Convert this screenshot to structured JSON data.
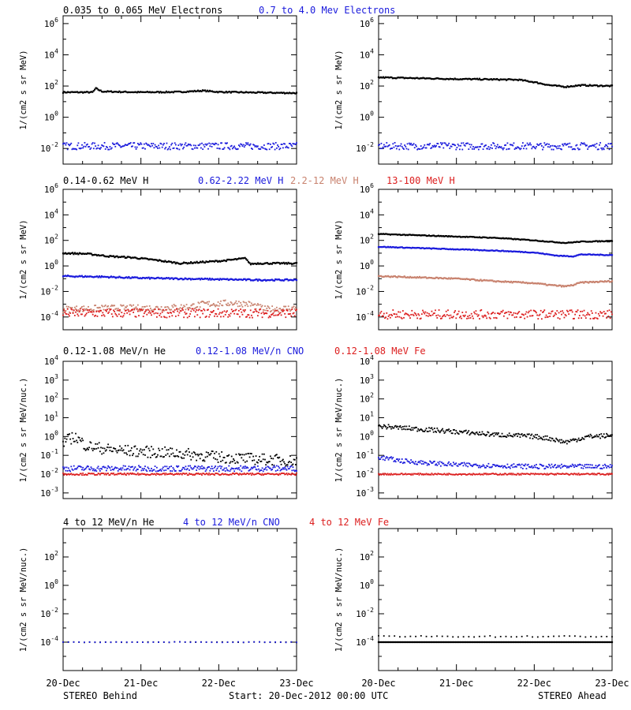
{
  "chart_data": [
    {
      "type": "scatter",
      "name": "electrons-behind",
      "title_parts": [
        {
          "text": "0.035 to 0.065 MeV Electrons",
          "color": "#000000"
        },
        {
          "text": "0.7 to 4.0 Mev Electrons",
          "color": "#1a1adc"
        }
      ],
      "ylabel": "1/(cm2 s sr MeV)",
      "yscale": "log",
      "ylim_exp": [
        -3,
        6.5
      ],
      "ytick_exps": [
        -2,
        0,
        2,
        4,
        6
      ],
      "xlim": [
        0,
        3
      ],
      "series": [
        {
          "color": "#000000",
          "style": "line",
          "x": [
            0,
            0.3,
            0.38,
            0.42,
            0.5,
            1.0,
            1.5,
            1.8,
            2.0,
            2.5,
            3.0
          ],
          "y_exp": [
            1.6,
            1.6,
            1.6,
            1.85,
            1.65,
            1.6,
            1.62,
            1.7,
            1.62,
            1.58,
            1.55
          ],
          "jitter": 0.04
        },
        {
          "color": "#1a1adc",
          "style": "scatter",
          "x": [
            0,
            3
          ],
          "y_exp": [
            -1.85,
            -1.85
          ],
          "jitter": 0.22
        }
      ]
    },
    {
      "type": "scatter",
      "name": "electrons-ahead",
      "title_parts": [],
      "ylabel": "1/(cm2 s sr MeV)",
      "yscale": "log",
      "ylim_exp": [
        -3,
        6.5
      ],
      "ytick_exps": [
        -2,
        0,
        2,
        4,
        6
      ],
      "xlim": [
        0,
        3
      ],
      "series": [
        {
          "color": "#000000",
          "style": "line",
          "x": [
            0,
            0.5,
            1.0,
            1.5,
            1.8,
            2.0,
            2.2,
            2.4,
            2.6,
            3.0
          ],
          "y_exp": [
            2.55,
            2.5,
            2.45,
            2.42,
            2.4,
            2.25,
            2.05,
            1.95,
            2.05,
            2.0
          ],
          "jitter": 0.04
        },
        {
          "color": "#1a1adc",
          "style": "scatter",
          "x": [
            0,
            3
          ],
          "y_exp": [
            -1.85,
            -1.85
          ],
          "jitter": 0.22
        }
      ]
    },
    {
      "type": "scatter",
      "name": "protons-behind",
      "title_parts": [
        {
          "text": "0.14-0.62 MeV H",
          "color": "#000000"
        },
        {
          "text": "0.62-2.22 MeV H",
          "color": "#1a1adc"
        },
        {
          "text": "2.2-12 MeV H",
          "color": "#c8826e"
        },
        {
          "text": "13-100 MeV H",
          "color": "#dc1e1e"
        }
      ],
      "ylabel": "1/(cm2 s sr MeV)",
      "yscale": "log",
      "ylim_exp": [
        -5,
        6
      ],
      "ytick_exps": [
        -4,
        -2,
        0,
        2,
        4,
        6
      ],
      "xlim": [
        0,
        3
      ],
      "series": [
        {
          "color": "#000000",
          "style": "line",
          "x": [
            0,
            0.3,
            0.6,
            0.9,
            1.2,
            1.5,
            1.8,
            2.05,
            2.35,
            2.4,
            2.5,
            3.0
          ],
          "y_exp": [
            1.0,
            0.95,
            0.75,
            0.65,
            0.45,
            0.2,
            0.3,
            0.4,
            0.6,
            0.15,
            0.2,
            0.2
          ],
          "jitter": 0.06
        },
        {
          "color": "#1a1adc",
          "style": "line",
          "x": [
            0,
            0.5,
            1.0,
            1.5,
            2.0,
            2.5,
            3.0
          ],
          "y_exp": [
            -0.8,
            -0.85,
            -0.95,
            -1.0,
            -1.05,
            -1.1,
            -1.1
          ],
          "jitter": 0.06
        },
        {
          "color": "#c8826e",
          "style": "scatter",
          "x": [
            0,
            0.6,
            1.2,
            1.6,
            1.8,
            2.2,
            2.4,
            2.6,
            3.0
          ],
          "y_exp": [
            -3.4,
            -3.3,
            -3.3,
            -3.2,
            -3.0,
            -2.9,
            -3.0,
            -3.4,
            -3.3
          ],
          "jitter": 0.25
        },
        {
          "color": "#dc1e1e",
          "style": "scatter",
          "x": [
            0,
            3
          ],
          "y_exp": [
            -3.7,
            -3.7
          ],
          "jitter": 0.35
        }
      ]
    },
    {
      "type": "scatter",
      "name": "protons-ahead",
      "title_parts": [],
      "ylabel": "1/(cm2 s sr MeV)",
      "yscale": "log",
      "ylim_exp": [
        -5,
        6
      ],
      "ytick_exps": [
        -4,
        -2,
        0,
        2,
        4,
        6
      ],
      "xlim": [
        0,
        3
      ],
      "series": [
        {
          "color": "#000000",
          "style": "line",
          "x": [
            0,
            0.5,
            1.0,
            1.5,
            2.0,
            2.2,
            2.4,
            2.6,
            3.0
          ],
          "y_exp": [
            2.5,
            2.4,
            2.3,
            2.2,
            2.0,
            1.9,
            1.8,
            1.9,
            1.95
          ],
          "jitter": 0.03
        },
        {
          "color": "#1a1adc",
          "style": "line",
          "x": [
            0,
            0.5,
            1.0,
            1.5,
            2.0,
            2.3,
            2.5,
            2.6,
            3.0
          ],
          "y_exp": [
            1.5,
            1.4,
            1.3,
            1.2,
            1.05,
            0.8,
            0.75,
            0.9,
            0.85
          ],
          "jitter": 0.03
        },
        {
          "color": "#c8826e",
          "style": "line",
          "x": [
            0,
            0.5,
            1.0,
            1.5,
            2.0,
            2.2,
            2.4,
            2.5,
            2.6,
            3.0
          ],
          "y_exp": [
            -0.8,
            -0.9,
            -1.0,
            -1.2,
            -1.35,
            -1.5,
            -1.6,
            -1.5,
            -1.3,
            -1.2
          ],
          "jitter": 0.05
        },
        {
          "color": "#dc1e1e",
          "style": "scatter",
          "x": [
            0,
            3
          ],
          "y_exp": [
            -3.8,
            -3.8
          ],
          "jitter": 0.35
        }
      ]
    },
    {
      "type": "scatter",
      "name": "heavy-ions-low-behind",
      "title_parts": [
        {
          "text": "0.12-1.08 MeV/n He",
          "color": "#000000"
        },
        {
          "text": "0.12-1.08 MeV/n CNO",
          "color": "#1a1adc"
        },
        {
          "text": "0.12-1.08 MeV Fe",
          "color": "#dc1e1e"
        }
      ],
      "ylabel": "1/(cm2 s sr MeV/nuc.)",
      "yscale": "log",
      "ylim_exp": [
        -3.3,
        4
      ],
      "ytick_exps": [
        -3,
        -2,
        -1,
        0,
        1,
        2,
        3,
        4
      ],
      "xlim": [
        0,
        3
      ],
      "series": [
        {
          "color": "#000000",
          "style": "scatter",
          "x": [
            0,
            0.15,
            0.3,
            0.6,
            1.0,
            1.5,
            2.0,
            2.5,
            3.0
          ],
          "y_exp": [
            -0.3,
            0.0,
            -0.5,
            -0.7,
            -0.8,
            -0.9,
            -1.1,
            -1.2,
            -1.3
          ],
          "jitter": 0.3
        },
        {
          "color": "#1a1adc",
          "style": "scatter",
          "x": [
            0,
            3
          ],
          "y_exp": [
            -1.7,
            -1.7
          ],
          "jitter": 0.15
        },
        {
          "color": "#dc1e1e",
          "style": "scatter",
          "x": [
            0,
            3
          ],
          "y_exp": [
            -2.0,
            -2.0
          ],
          "jitter": 0.05
        }
      ]
    },
    {
      "type": "scatter",
      "name": "heavy-ions-low-ahead",
      "title_parts": [],
      "ylabel": "1/(cm2 s sr MeV/nuc.)",
      "yscale": "log",
      "ylim_exp": [
        -3.3,
        4
      ],
      "ytick_exps": [
        -3,
        -2,
        -1,
        0,
        1,
        2,
        3,
        4
      ],
      "xlim": [
        0,
        3
      ],
      "series": [
        {
          "color": "#000000",
          "style": "scatter",
          "x": [
            0,
            0.5,
            1.0,
            1.5,
            2.0,
            2.2,
            2.4,
            2.5,
            2.7,
            3.0
          ],
          "y_exp": [
            0.55,
            0.4,
            0.25,
            0.1,
            0.0,
            -0.1,
            -0.3,
            -0.2,
            0.0,
            0.05
          ],
          "jitter": 0.12
        },
        {
          "color": "#1a1adc",
          "style": "scatter",
          "x": [
            0,
            0.3,
            0.6,
            1.0,
            2.0,
            3.0
          ],
          "y_exp": [
            -1.1,
            -1.3,
            -1.4,
            -1.5,
            -1.6,
            -1.6
          ],
          "jitter": 0.12
        },
        {
          "color": "#dc1e1e",
          "style": "scatter",
          "x": [
            0,
            3
          ],
          "y_exp": [
            -2.0,
            -2.0
          ],
          "jitter": 0.04
        }
      ]
    },
    {
      "type": "scatter",
      "name": "heavy-ions-high-behind",
      "title_parts": [
        {
          "text": "4 to 12 MeV/n He",
          "color": "#000000"
        },
        {
          "text": "4 to 12 MeV/n CNO",
          "color": "#1a1adc"
        },
        {
          "text": "4 to 12 MeV Fe",
          "color": "#dc1e1e"
        }
      ],
      "ylabel": "1/(cm2 s sr MeV/nuc.)",
      "yscale": "log",
      "ylim_exp": [
        -6,
        4
      ],
      "ytick_exps": [
        -4,
        -2,
        0,
        2
      ],
      "xlim": [
        0,
        3
      ],
      "series": [
        {
          "color": "#000000",
          "style": "sparse",
          "x": [
            0,
            3
          ],
          "y_exp": [
            -4.0,
            -4.0
          ],
          "jitter": 0.02
        },
        {
          "color": "#1a1adc",
          "style": "sparse",
          "x": [
            0,
            3
          ],
          "y_exp": [
            -4.0,
            -4.0
          ],
          "jitter": 0.02
        }
      ]
    },
    {
      "type": "scatter",
      "name": "heavy-ions-high-ahead",
      "title_parts": [],
      "ylabel": "1/(cm2 s sr MeV/nuc.)",
      "yscale": "log",
      "ylim_exp": [
        -6,
        4
      ],
      "ytick_exps": [
        -4,
        -2,
        0,
        2
      ],
      "xlim": [
        0,
        3
      ],
      "series": [
        {
          "color": "#000000",
          "style": "line",
          "x": [
            0,
            3
          ],
          "y_exp": [
            -4.0,
            -4.0
          ],
          "jitter": 0.0
        },
        {
          "color": "#000000",
          "style": "sparse",
          "x": [
            0,
            3
          ],
          "y_exp": [
            -3.6,
            -3.6
          ],
          "jitter": 0.05
        }
      ]
    }
  ],
  "x_ticks": [
    "20-Dec",
    "21-Dec",
    "22-Dec",
    "23-Dec"
  ],
  "footer": {
    "left": "STEREO Behind",
    "center": "Start: 20-Dec-2012 00:00 UTC",
    "right": "STEREO Ahead"
  }
}
